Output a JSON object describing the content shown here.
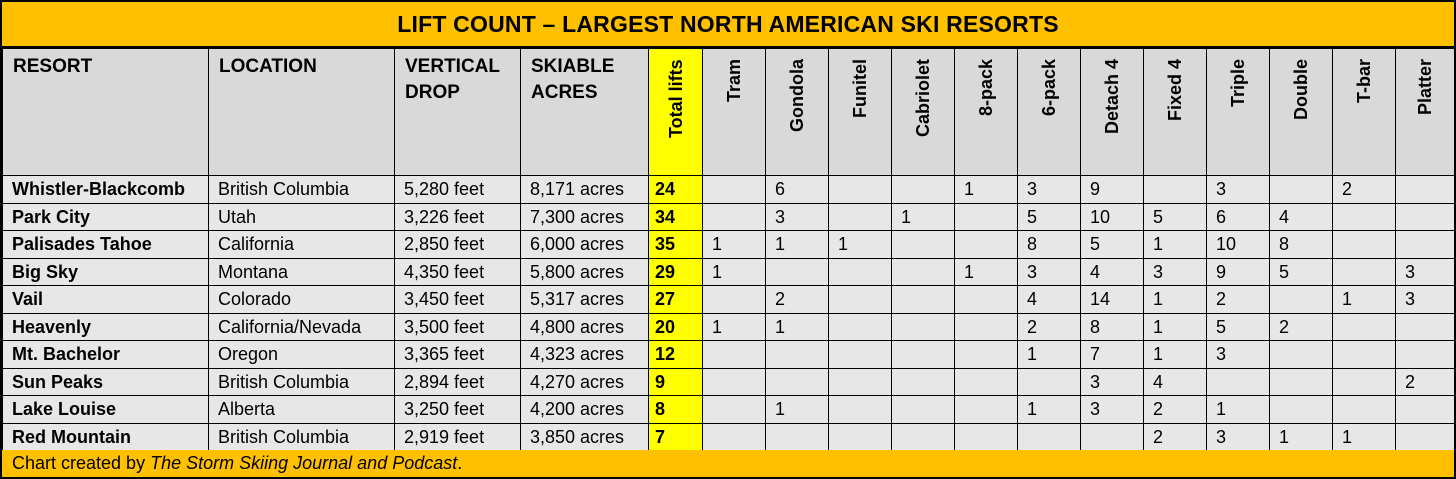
{
  "chart_data": {
    "type": "table",
    "title": "LIFT COUNT – LARGEST NORTH AMERICAN SKI RESORTS",
    "columns": {
      "resort": "RESORT",
      "location": "LOCATION",
      "vertical": "VERTICAL DROP",
      "acres": "SKIABLE ACRES",
      "total": "Total lifts",
      "lift_types": [
        "Tram",
        "Gondola",
        "Funitel",
        "Cabriolet",
        "8-pack",
        "6-pack",
        "Detach 4",
        "Fixed 4",
        "Triple",
        "Double",
        "T-bar",
        "Platter"
      ]
    },
    "rows": [
      {
        "resort": "Whistler-Blackcomb",
        "location": "British Columbia",
        "vertical": "5,280 feet",
        "acres": "8,171 acres",
        "total": "24",
        "lifts": [
          "",
          "6",
          "",
          "",
          "1",
          "3",
          "9",
          "",
          "3",
          "",
          "2",
          ""
        ]
      },
      {
        "resort": "Park City",
        "location": "Utah",
        "vertical": "3,226 feet",
        "acres": "7,300 acres",
        "total": "34",
        "lifts": [
          "",
          "3",
          "",
          "1",
          "",
          "5",
          "10",
          "5",
          "6",
          "4",
          "",
          ""
        ]
      },
      {
        "resort": "Palisades Tahoe",
        "location": "California",
        "vertical": "2,850 feet",
        "acres": "6,000 acres",
        "total": "35",
        "lifts": [
          "1",
          "1",
          "1",
          "",
          "",
          "8",
          "5",
          "1",
          "10",
          "8",
          "",
          ""
        ]
      },
      {
        "resort": "Big Sky",
        "location": "Montana",
        "vertical": "4,350 feet",
        "acres": "5,800 acres",
        "total": "29",
        "lifts": [
          "1",
          "",
          "",
          "",
          "1",
          "3",
          "4",
          "3",
          "9",
          "5",
          "",
          "3"
        ]
      },
      {
        "resort": "Vail",
        "location": "Colorado",
        "vertical": "3,450 feet",
        "acres": "5,317 acres",
        "total": "27",
        "lifts": [
          "",
          "2",
          "",
          "",
          "",
          "4",
          "14",
          "1",
          "2",
          "",
          "1",
          "3"
        ]
      },
      {
        "resort": "Heavenly",
        "location": "California/Nevada",
        "vertical": "3,500 feet",
        "acres": "4,800 acres",
        "total": "20",
        "lifts": [
          "1",
          "1",
          "",
          "",
          "",
          "2",
          "8",
          "1",
          "5",
          "2",
          "",
          ""
        ]
      },
      {
        "resort": "Mt. Bachelor",
        "location": "Oregon",
        "vertical": "3,365 feet",
        "acres": "4,323 acres",
        "total": "12",
        "lifts": [
          "",
          "",
          "",
          "",
          "",
          "1",
          "7",
          "1",
          "3",
          "",
          "",
          ""
        ]
      },
      {
        "resort": "Sun Peaks",
        "location": "British Columbia",
        "vertical": "2,894 feet",
        "acres": "4,270 acres",
        "total": "9",
        "lifts": [
          "",
          "",
          "",
          "",
          "",
          "",
          "3",
          "4",
          "",
          "",
          "",
          "2"
        ]
      },
      {
        "resort": "Lake Louise",
        "location": "Alberta",
        "vertical": "3,250 feet",
        "acres": "4,200 acres",
        "total": "8",
        "lifts": [
          "",
          "1",
          "",
          "",
          "",
          "1",
          "3",
          "2",
          "1",
          "",
          "",
          ""
        ]
      },
      {
        "resort": "Red Mountain",
        "location": "British Columbia",
        "vertical": "2,919 feet",
        "acres": "3,850 acres",
        "total": "7",
        "lifts": [
          "",
          "",
          "",
          "",
          "",
          "",
          "",
          "2",
          "3",
          "1",
          "1",
          ""
        ]
      }
    ]
  },
  "footer": {
    "prefix": "Chart created by ",
    "source": "The Storm Skiing Journal and Podcast",
    "suffix": "."
  },
  "colors": {
    "banner": "#ffc000",
    "total_highlight": "#ffff00",
    "header_fill": "#d9d9d9",
    "body_fill": "#e7e7e7"
  }
}
